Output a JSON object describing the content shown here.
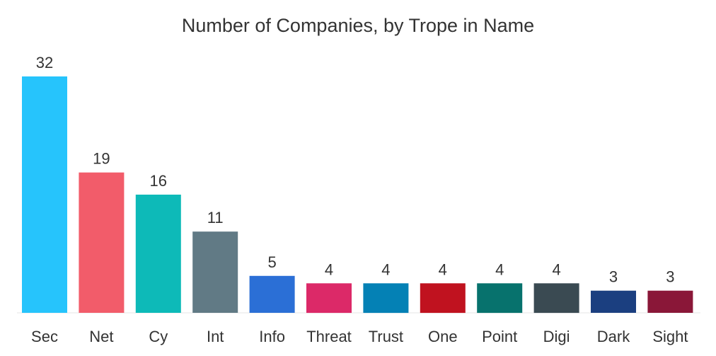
{
  "chart_data": {
    "type": "bar",
    "title": "Number of Companies, by Trope in Name",
    "xlabel": "",
    "ylabel": "",
    "ylim": [
      0,
      32
    ],
    "grid": false,
    "categories": [
      "Sec",
      "Net",
      "Cy",
      "Int",
      "Info",
      "Threat",
      "Trust",
      "One",
      "Point",
      "Digi",
      "Dark",
      "Sight"
    ],
    "values": [
      32,
      19,
      16,
      11,
      5,
      4,
      4,
      4,
      4,
      4,
      3,
      3
    ],
    "colors": [
      "#26c4fc",
      "#f25c6a",
      "#0dbab8",
      "#617a85",
      "#2b6fd6",
      "#dc2968",
      "#0481b5",
      "#c0121f",
      "#07726d",
      "#3a4a52",
      "#1b3f80",
      "#8a1738"
    ]
  }
}
